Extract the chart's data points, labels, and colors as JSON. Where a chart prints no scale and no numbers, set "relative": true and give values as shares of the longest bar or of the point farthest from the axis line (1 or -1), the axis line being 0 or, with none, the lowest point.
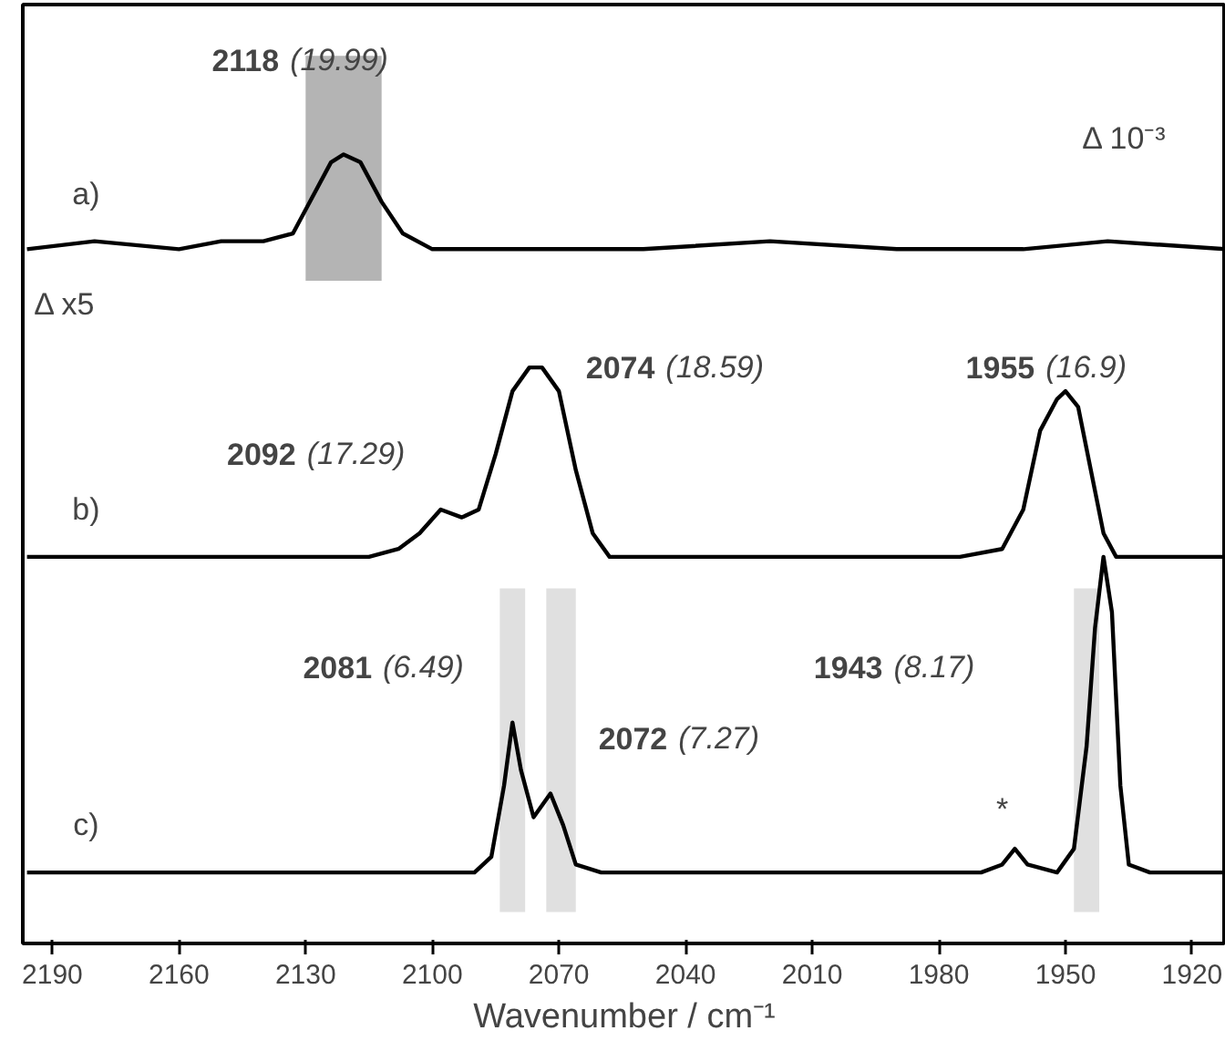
{
  "chart_data": {
    "type": "line",
    "relative": true,
    "xlabel": "Wavenumber / cm⁻¹",
    "xlim": [
      2197,
      1912
    ],
    "xticks": [
      2190,
      2160,
      2130,
      2100,
      2070,
      2040,
      2010,
      1980,
      1950,
      1920
    ],
    "grid": false,
    "line_style": "solid",
    "marker": "none",
    "series": [
      {
        "color": "#000000",
        "x": [
          2196,
          2180,
          2160,
          2150,
          2140,
          2133,
          2128,
          2124,
          2121,
          2117,
          2112,
          2107,
          2100,
          2080,
          2050,
          2020,
          1990,
          1960,
          1940,
          1912
        ],
        "values": [
          0.88,
          0.89,
          0.88,
          0.89,
          0.89,
          0.9,
          0.95,
          0.99,
          1.0,
          0.99,
          0.94,
          0.9,
          0.88,
          0.88,
          0.88,
          0.89,
          0.88,
          0.88,
          0.89,
          0.88
        ]
      },
      {
        "color": "#000000",
        "x": [
          2196,
          2160,
          2130,
          2115,
          2108,
          2103,
          2098,
          2093,
          2089,
          2085,
          2081,
          2077,
          2074,
          2070,
          2066,
          2062,
          2058,
          2040,
          2000,
          1975,
          1965,
          1960,
          1956,
          1952,
          1950,
          1947,
          1944,
          1941,
          1938,
          1912
        ],
        "values": [
          0.49,
          0.49,
          0.49,
          0.49,
          0.5,
          0.52,
          0.55,
          0.54,
          0.55,
          0.62,
          0.7,
          0.73,
          0.73,
          0.7,
          0.6,
          0.52,
          0.49,
          0.49,
          0.49,
          0.49,
          0.5,
          0.55,
          0.65,
          0.69,
          0.7,
          0.68,
          0.6,
          0.52,
          0.49,
          0.49
        ]
      },
      {
        "color": "#000000",
        "x": [
          2196,
          2150,
          2100,
          2090,
          2086,
          2083,
          2081,
          2079,
          2076,
          2072,
          2069,
          2066,
          2060,
          2000,
          1970,
          1965,
          1962,
          1959,
          1952,
          1948,
          1945,
          1943,
          1941,
          1939,
          1937,
          1935,
          1930,
          1912
        ],
        "values": [
          0.09,
          0.09,
          0.09,
          0.09,
          0.11,
          0.2,
          0.28,
          0.22,
          0.16,
          0.19,
          0.15,
          0.1,
          0.09,
          0.09,
          0.09,
          0.1,
          0.12,
          0.1,
          0.09,
          0.12,
          0.25,
          0.4,
          0.49,
          0.42,
          0.2,
          0.1,
          0.09,
          0.09
        ]
      }
    ],
    "bands": [
      {
        "axis": "x",
        "from": 2130,
        "to": 2112,
        "color": "#b4b4b4"
      },
      {
        "axis": "x",
        "from": 2084,
        "to": 2078,
        "color": "#e0e0e0"
      },
      {
        "axis": "x",
        "from": 2073,
        "to": 2066,
        "color": "#e0e0e0"
      },
      {
        "axis": "x",
        "from": 1948,
        "to": 1942,
        "color": "#e0e0e0"
      }
    ],
    "annotations": [
      "2118 (19.99)",
      "2074 (18.59)",
      "2092 (17.29)",
      "2081 (6.49)",
      "2072 (7.27)",
      "1955 (16.9)",
      "1943 (8.17)",
      "*",
      "a)",
      "b)",
      "c)",
      "Δ x5",
      "Δ 10⁻³"
    ]
  }
}
